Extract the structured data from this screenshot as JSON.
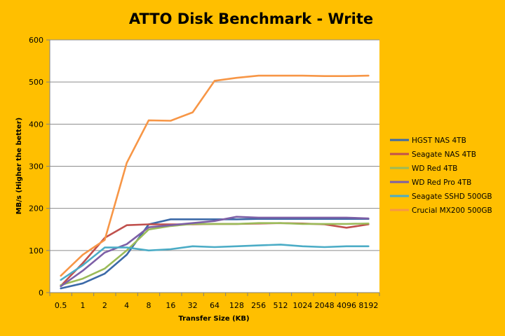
{
  "chart_data": {
    "type": "line",
    "title": "ATTO Disk Benchmark - Write",
    "xlabel": "Transfer Size (KB)",
    "ylabel": "MB/s (Higher the better)",
    "ylim": [
      0,
      600
    ],
    "yticks": [
      0,
      100,
      200,
      300,
      400,
      500,
      600
    ],
    "grid": "horizontal",
    "legend": "right",
    "categories": [
      "0.5",
      "1",
      "2",
      "4",
      "8",
      "16",
      "32",
      "64",
      "128",
      "256",
      "512",
      "1024",
      "2048",
      "4096",
      "8192"
    ],
    "series": [
      {
        "name": "HGST NAS 4TB",
        "color": "#3c6aa8",
        "values": [
          10,
          22,
          45,
          90,
          162,
          174,
          174,
          174,
          174,
          175,
          175,
          175,
          175,
          175,
          175
        ]
      },
      {
        "name": "Seagate NAS 4TB",
        "color": "#c0504d",
        "values": [
          16,
          70,
          130,
          160,
          162,
          162,
          162,
          163,
          163,
          164,
          165,
          164,
          162,
          154,
          162
        ]
      },
      {
        "name": "WD Red 4TB",
        "color": "#9bbb59",
        "values": [
          18,
          33,
          57,
          100,
          150,
          158,
          163,
          163,
          163,
          165,
          165,
          163,
          163,
          163,
          164
        ]
      },
      {
        "name": "WD Red Pro 4TB",
        "color": "#7d5fa6",
        "values": [
          15,
          52,
          95,
          115,
          155,
          160,
          165,
          170,
          180,
          178,
          178,
          178,
          178,
          178,
          176
        ]
      },
      {
        "name": "Seagate SSHD 500GB",
        "color": "#4bacc6",
        "values": [
          30,
          65,
          107,
          107,
          100,
          103,
          110,
          108,
          110,
          112,
          114,
          110,
          108,
          110,
          110
        ]
      },
      {
        "name": "Crucial MX200 500GB",
        "color": "#f79646",
        "values": [
          40,
          90,
          125,
          308,
          409,
          408,
          428,
          503,
          510,
          515,
          515,
          515,
          514,
          514,
          515
        ]
      }
    ]
  }
}
